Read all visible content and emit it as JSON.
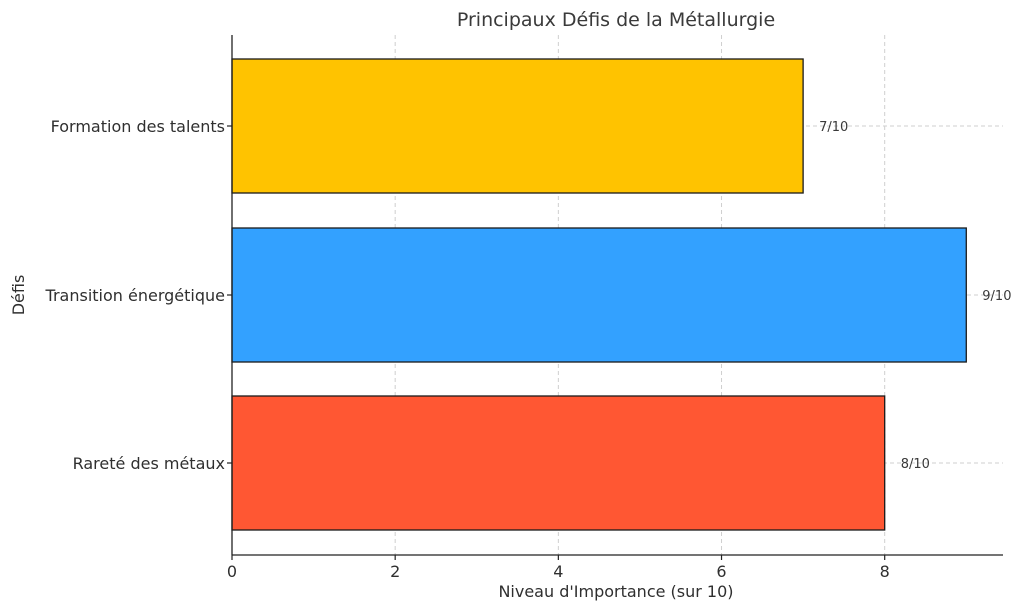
{
  "chart_data": {
    "type": "bar",
    "orientation": "horizontal",
    "title": "Principaux Défis de la Métallurgie",
    "xlabel": "Niveau d'Importance (sur 10)",
    "ylabel": "Défis",
    "categories": [
      "Rareté des métaux",
      "Transition énergétique",
      "Formation des talents"
    ],
    "values": [
      8,
      9,
      7
    ],
    "value_labels": [
      "8/10",
      "9/10",
      "7/10"
    ],
    "colors": [
      "#ff5733",
      "#33a1ff",
      "#ffc300"
    ],
    "xlim": [
      0,
      9.45
    ],
    "xticks": [
      "0",
      "2",
      "4",
      "6",
      "8"
    ],
    "grid": true
  }
}
